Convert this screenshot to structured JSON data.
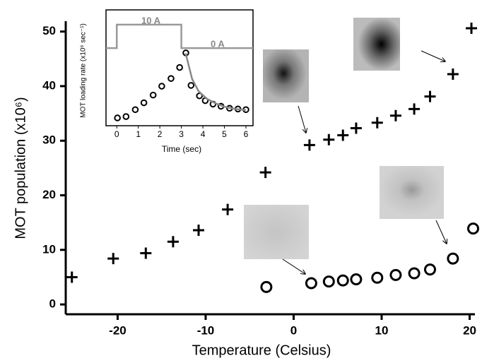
{
  "chart_data": [
    {
      "type": "scatter",
      "xlabel": "Temperature (Celsius)",
      "ylabel": "MOT population (x10⁶)",
      "xlim": [
        -25.9,
        20.6
      ],
      "xticks": [
        -20,
        -10,
        0,
        10,
        20
      ],
      "ylim": [
        -1.8,
        51.9
      ],
      "yticks": [
        0,
        10,
        20,
        30,
        40,
        50
      ],
      "series": [
        {
          "marker": "plus",
          "color": "#000000",
          "x": [
            -25.2,
            -20.5,
            -16.8,
            -13.7,
            -10.8,
            -7.5,
            -3.2,
            1.8,
            4.0,
            5.6,
            7.1,
            9.5,
            11.6,
            13.7,
            15.5,
            18.1,
            20.2
          ],
          "values": [
            5.0,
            8.4,
            9.4,
            11.5,
            13.6,
            17.4,
            24.2,
            29.2,
            30.2,
            31.0,
            32.3,
            33.3,
            34.6,
            35.8,
            38.1,
            42.2,
            50.6
          ]
        },
        {
          "marker": "circle",
          "color": "#000000",
          "x": [
            -3.1,
            2.0,
            4.0,
            5.6,
            7.1,
            9.5,
            11.6,
            13.7,
            15.5,
            18.1,
            20.4
          ],
          "values": [
            3.2,
            3.9,
            4.2,
            4.4,
            4.6,
            4.9,
            5.4,
            5.7,
            6.4,
            8.4,
            13.9
          ]
        }
      ]
    },
    {
      "type": "scatter",
      "xlabel": "Time (sec)",
      "ylabel": "MOT loading rate (x10⁶ sec⁻¹)",
      "xlim": [
        -0.5,
        6.33
      ],
      "xticks": [
        0,
        1,
        2,
        3,
        4,
        5,
        6
      ],
      "ylim": [
        -2,
        102
      ],
      "annotations": [
        "10 A",
        "0 A"
      ],
      "series": [
        {
          "marker": "circle",
          "color": "#000000",
          "x": [
            0.03,
            0.43,
            0.86,
            1.26,
            1.69,
            2.09,
            2.52,
            2.92,
            3.21,
            3.45,
            3.84,
            4.11,
            4.47,
            4.84,
            5.24,
            5.63,
            6.0
          ],
          "values": [
            5.0,
            6.2,
            12.4,
            18.6,
            25.5,
            33.5,
            40.4,
            50.3,
            63.4,
            34.2,
            24.8,
            20.5,
            17.4,
            15.5,
            13.7,
            13.0,
            12.4
          ]
        },
        {
          "marker": "line",
          "color": "#888888",
          "x": [
            3.2,
            3.5,
            3.8,
            4.2,
            4.6,
            5.0,
            5.5,
            6.0
          ],
          "values": [
            63,
            40,
            29,
            22,
            18,
            15,
            13,
            12
          ]
        },
        {
          "marker": "line",
          "color": "#999999",
          "x": [
            -0.5,
            0,
            0,
            3,
            3,
            6.33
          ],
          "values": [
            67.7,
            67.7,
            88.8,
            88.8,
            67.7,
            67.7
          ]
        }
      ]
    }
  ]
}
